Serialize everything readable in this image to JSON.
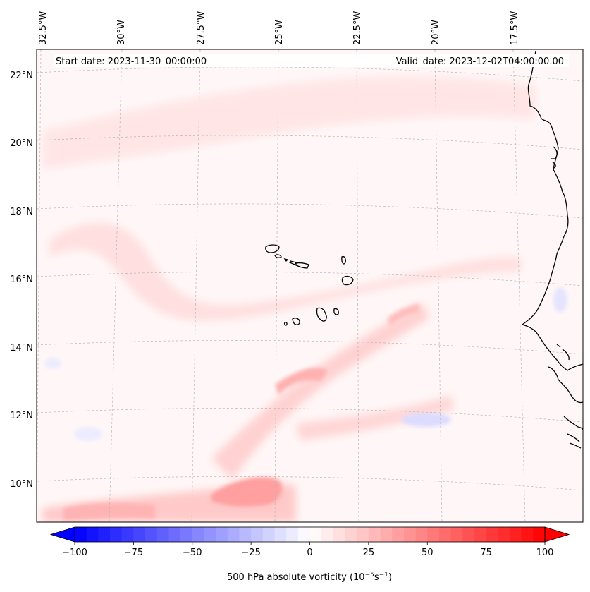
{
  "map": {
    "start_date": "Start date: 2023-11-30_00:00:00",
    "valid_date": "Valid_date: 2023-12-02T04:00:00.00",
    "longitude_labels": [
      "32.5°W",
      "30°W",
      "27.5°W",
      "25°W",
      "22.5°W",
      "20°W",
      "17.5°W"
    ],
    "latitude_labels": [
      "22°N",
      "20°N",
      "18°N",
      "16°N",
      "14°N",
      "12°N",
      "10°N"
    ],
    "field": "500 hPa absolute vorticity",
    "projection": "conic, dashed graticule",
    "coastline_color": "#000000"
  },
  "colorbar": {
    "label_html": "500 hPa absolute vorticity (10<tspan dy=\"-5\" font-size=\"9\">−5</tspan><tspan dy=\"5\">s</tspan><tspan dy=\"-5\" font-size=\"9\">−1</tspan><tspan dy=\"5\">)</tspan>",
    "ticks": [
      "−100",
      "−75",
      "−50",
      "−25",
      "0",
      "25",
      "50",
      "75",
      "100"
    ],
    "tick_values": [
      -100,
      -75,
      -50,
      -25,
      0,
      25,
      50,
      75,
      100
    ],
    "min": -100,
    "max": 100,
    "step": 5,
    "extend": "both",
    "colormap": "bwr",
    "low_color": "#0000ff",
    "mid_color": "#ffffff",
    "high_color": "#ff0000"
  }
}
